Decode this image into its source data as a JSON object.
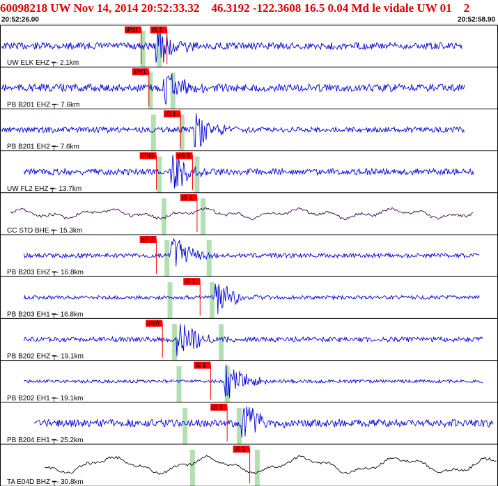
{
  "header": {
    "title": "60098218 UW Nov 14, 2014 20:52:33.32    46.3192 -122.3608 16.5 0.04 Md le vidale UW 01    2",
    "start_time": "20:52:26.00",
    "end_time": "20:52:58.90"
  },
  "chart_data": {
    "type": "line",
    "title": "60098218 UW Nov 14, 2014 20:52:33.32    46.3192 -122.3608 16.5 0.04 Md le vidale UW 01    2",
    "x_start": "20:52:26.00",
    "x_end": "20:52:58.90",
    "x_range_s": [
      0,
      32.9
    ],
    "traces": [
      {
        "station": "UW ELK EHZ",
        "dist": "2.1km",
        "color": "#0000dd",
        "start_s": 0.0,
        "end_s": 30.6,
        "amp": 0.55,
        "picks": [
          {
            "label": "iPd1",
            "t": 9.3
          },
          {
            "label": "iS 1",
            "t": 11.0
          }
        ]
      },
      {
        "station": "PB B201 EHZ",
        "dist": "7.6km",
        "color": "#0000dd",
        "start_s": 0.0,
        "end_s": 30.8,
        "amp": 0.6,
        "picks": [
          {
            "label": "iPd1",
            "t": 9.8
          }
        ]
      },
      {
        "station": "PB B201 EH2",
        "dist": "7.6km",
        "color": "#0000dd",
        "start_s": 0.0,
        "end_s": 30.8,
        "amp": 0.45,
        "picks": [
          {
            "label": "iS 1",
            "t": 11.9
          }
        ]
      },
      {
        "station": "UW FL2 EHZ",
        "dist": "13.7km",
        "color": "#0000dd",
        "start_s": 1.5,
        "end_s": 31.4,
        "amp": 0.5,
        "picks": [
          {
            "label": "iPd0",
            "t": 10.3
          },
          {
            "label": "eS 2",
            "t": 12.7
          }
        ]
      },
      {
        "station": "CC STD BHE",
        "dist": "15.3km",
        "color": "#330044",
        "start_s": 0.6,
        "end_s": 31.4,
        "amp": 0.3,
        "picks": [
          {
            "label": "iS 1",
            "t": 13.0
          }
        ]
      },
      {
        "station": "PB B203 EHZ",
        "dist": "16.8km",
        "color": "#0000dd",
        "start_s": 1.5,
        "end_s": 31.8,
        "amp": 0.35,
        "picks": [
          {
            "label": "eP 2",
            "t": 10.3
          }
        ]
      },
      {
        "station": "PB B203 EH1",
        "dist": "16.8km",
        "color": "#0000dd",
        "start_s": 1.5,
        "end_s": 31.8,
        "amp": 0.3,
        "picks": [
          {
            "label": "iS 1",
            "t": 13.2
          }
        ]
      },
      {
        "station": "PB B202 EHZ",
        "dist": "19.1km",
        "color": "#0000dd",
        "start_s": 1.5,
        "end_s": 32.0,
        "amp": 0.4,
        "picks": [
          {
            "label": "iPc0",
            "t": 10.7
          }
        ]
      },
      {
        "station": "PB B202 EH1",
        "dist": "19.1km",
        "color": "#0000dd",
        "start_s": 1.5,
        "end_s": 32.0,
        "amp": 0.25,
        "picks": [
          {
            "label": "iS 1",
            "t": 13.9
          }
        ]
      },
      {
        "station": "PB B204 EH1",
        "dist": "25.2km",
        "color": "#0000dd",
        "start_s": 2.2,
        "end_s": 32.7,
        "amp": 0.6,
        "picks": [
          {
            "label": "iS 1",
            "t": 15.0
          }
        ]
      },
      {
        "station": "TA E04D BHZ",
        "dist": "30.8km",
        "color": "#000000",
        "start_s": 2.9,
        "end_s": 32.9,
        "amp": 0.65,
        "picks": [
          {
            "label": "iS 1",
            "t": 16.5
          }
        ]
      }
    ],
    "p_theoretical_s": [
      9.4,
      9.9,
      10.1,
      10.5,
      10.8,
      11.0,
      11.2,
      11.5,
      11.8,
      12.2,
      12.7
    ],
    "s_theoretical_s": [
      10.5,
      11.4,
      12.0,
      13.0,
      13.4,
      13.8,
      14.0,
      14.6,
      15.0,
      15.8,
      17.0
    ],
    "colors": {
      "pick_flag": "#ff0000",
      "p_band": "#b3e0b3",
      "s_band": "#b3e0b3",
      "trace_blue": "#0000dd"
    }
  }
}
